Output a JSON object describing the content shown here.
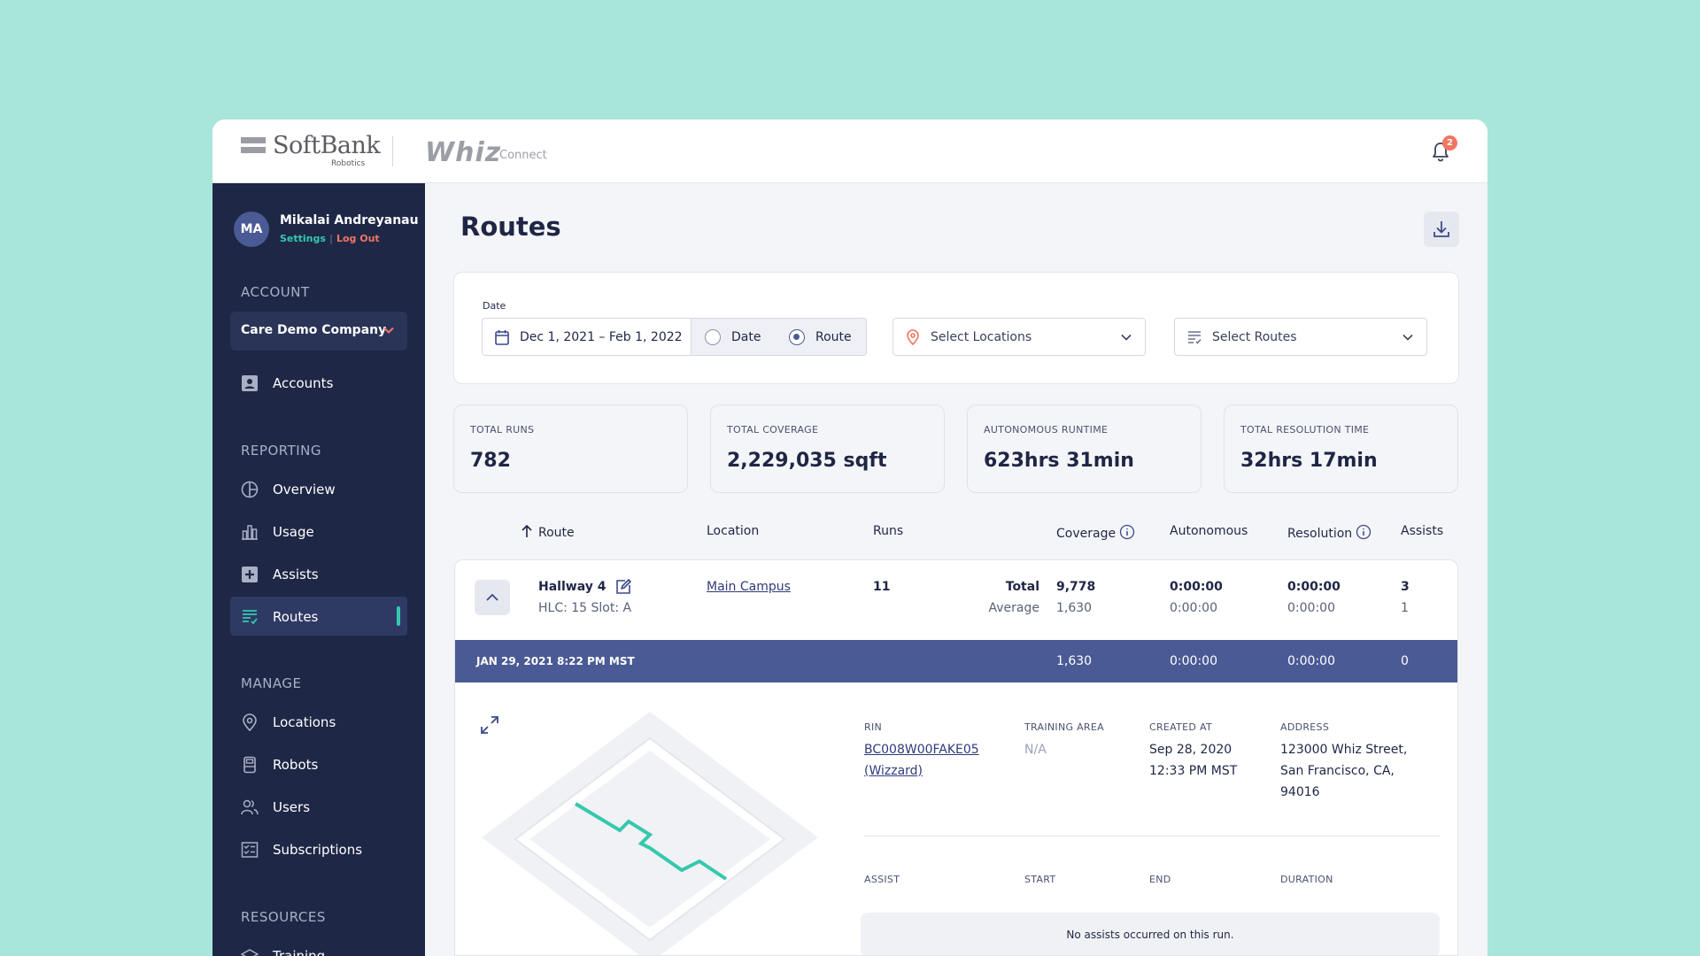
{
  "brand": {
    "softbank_name": "SoftBank",
    "softbank_sub": "Robotics",
    "product_name": "Whiz",
    "product_sub": "Connect"
  },
  "notifications": {
    "count": "2"
  },
  "user": {
    "initials": "MA",
    "name": "Mikalai Andreyanau",
    "settings_label": "Settings",
    "separator": "|",
    "logout_label": "Log Out"
  },
  "sidebar": {
    "account_heading": "ACCOUNT",
    "account_selected": "Care Demo Company",
    "accounts_label": "Accounts",
    "reporting_heading": "REPORTING",
    "reporting_items": [
      {
        "label": "Overview",
        "icon": "pie-chart-icon"
      },
      {
        "label": "Usage",
        "icon": "bar-chart-icon"
      },
      {
        "label": "Assists",
        "icon": "plus-square-icon"
      },
      {
        "label": "Routes",
        "icon": "routes-list-icon"
      }
    ],
    "active_item": "Routes",
    "manage_heading": "MANAGE",
    "manage_items": [
      {
        "label": "Locations",
        "icon": "location-pin-icon"
      },
      {
        "label": "Robots",
        "icon": "robot-icon"
      },
      {
        "label": "Users",
        "icon": "users-icon"
      },
      {
        "label": "Subscriptions",
        "icon": "subscription-icon"
      }
    ],
    "resources_heading": "RESOURCES",
    "resources_items": [
      {
        "label": "Training",
        "icon": "graduation-cap-icon"
      }
    ]
  },
  "page": {
    "title": "Routes"
  },
  "filters": {
    "date_label": "Date",
    "date_range": "Dec 1, 2021 – Feb 1, 2022",
    "toggle_date": "Date",
    "toggle_route": "Route",
    "toggle_selected": "Route",
    "locations_placeholder": "Select Locations",
    "routes_placeholder": "Select Routes"
  },
  "stats": [
    {
      "label": "TOTAL RUNS",
      "value": "782"
    },
    {
      "label": "TOTAL COVERAGE",
      "value": "2,229,035 sqft"
    },
    {
      "label": "AUTONOMOUS RUNTIME",
      "value": "623hrs 31min"
    },
    {
      "label": "TOTAL RESOLUTION TIME",
      "value": "32hrs 17min"
    }
  ],
  "table": {
    "columns": {
      "route": "Route",
      "location": "Location",
      "runs": "Runs",
      "coverage": "Coverage",
      "autonomous": "Autonomous",
      "resolution": "Resolution",
      "assists": "Assists"
    },
    "sort_column": "Route",
    "row": {
      "route_name": "Hallway 4",
      "route_sub": "HLC: 15 Slot: A",
      "location": "Main Campus",
      "runs": "11",
      "total_label": "Total",
      "average_label": "Average",
      "coverage_total": "9,778",
      "coverage_avg": "1,630",
      "autonomous_total": "0:00:00",
      "autonomous_avg": "0:00:00",
      "resolution_total": "0:00:00",
      "resolution_avg": "0:00:00",
      "assists_total": "3",
      "assists_avg": "1"
    },
    "run": {
      "timestamp": "JAN 29, 2021 8:22 PM MST",
      "coverage": "1,630",
      "autonomous": "0:00:00",
      "resolution": "0:00:00",
      "assists": "0"
    },
    "detail": {
      "rin_label": "RIN",
      "rin_value": "BC008W00FAKE05",
      "rin_name": "(Wizzard)",
      "training_area_label": "TRAINING AREA",
      "training_area_value": "N/A",
      "created_label": "CREATED AT",
      "created_date": "Sep 28, 2020",
      "created_time": "12:33 PM MST",
      "address_label": "ADDRESS",
      "address_line1": "123000 Whiz Street,",
      "address_line2": "San Francisco, CA,",
      "address_line3": "94016",
      "assist_col": "ASSIST",
      "start_col": "START",
      "end_col": "END",
      "duration_col": "DURATION",
      "no_assists": "No assists occurred on this run."
    }
  },
  "colors": {
    "background": "#a8e6db",
    "sidebar": "#1e2746",
    "accent_teal": "#35c8ad",
    "accent_coral": "#f07662",
    "run_row": "#4a5a94"
  }
}
